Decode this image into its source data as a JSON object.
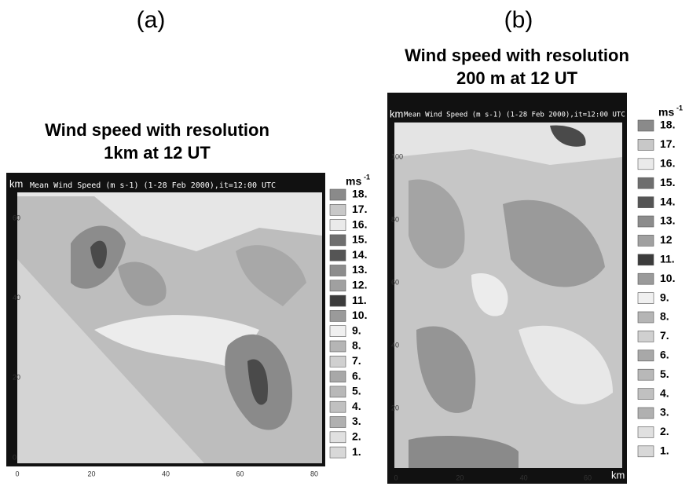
{
  "panels": [
    {
      "label": "(a)",
      "title": "Wind speed with resolution",
      "subtitle": "1km at 12 UT",
      "map_header": "Mean Wind Speed (m s-1) (1-28 Feb 2000),it=12:00 UTC",
      "axis_unit": "km",
      "yticks": [
        "60",
        "40",
        "20",
        "0"
      ],
      "xticks": [
        "0",
        "20",
        "40",
        "60",
        "80"
      ],
      "legend_unit": "ms",
      "legend_unit_sup": "-1",
      "legend": [
        {
          "label": "18.",
          "color": "#8a8a8a"
        },
        {
          "label": "17.",
          "color": "#c8c8c8"
        },
        {
          "label": "16.",
          "color": "#eaeaea"
        },
        {
          "label": "15.",
          "color": "#6e6e6e"
        },
        {
          "label": "14.",
          "color": "#555555"
        },
        {
          "label": "13.",
          "color": "#8c8c8c"
        },
        {
          "label": "12.",
          "color": "#a0a0a0"
        },
        {
          "label": "11.",
          "color": "#3c3c3c"
        },
        {
          "label": "10.",
          "color": "#9a9a9a"
        },
        {
          "label": "9.",
          "color": "#f0f0f0"
        },
        {
          "label": "8.",
          "color": "#b5b5b5"
        },
        {
          "label": "7.",
          "color": "#d0d0d0"
        },
        {
          "label": "6.",
          "color": "#a8a8a8"
        },
        {
          "label": "5.",
          "color": "#b8b8b8"
        },
        {
          "label": "4.",
          "color": "#c0c0c0"
        },
        {
          "label": "3.",
          "color": "#b0b0b0"
        },
        {
          "label": "2.",
          "color": "#e0e0e0"
        },
        {
          "label": "1.",
          "color": "#d8d8d8"
        }
      ]
    },
    {
      "label": "(b)",
      "title": "Wind speed with resolution",
      "subtitle": "200 m at 12 UT",
      "map_header": "Mean Wind Speed (m s-1) (1-28 Feb 2000),it=12:00 UTC",
      "axis_unit": "km",
      "yticks": [
        "100",
        "80",
        "60",
        "40",
        "20"
      ],
      "xticks": [
        "0",
        "20",
        "40",
        "60"
      ],
      "legend_unit": "ms",
      "legend_unit_sup": "-1",
      "legend": [
        {
          "label": "18.",
          "color": "#8a8a8a"
        },
        {
          "label": "17.",
          "color": "#c8c8c8"
        },
        {
          "label": "16.",
          "color": "#eaeaea"
        },
        {
          "label": "15.",
          "color": "#6e6e6e"
        },
        {
          "label": "14.",
          "color": "#555555"
        },
        {
          "label": "13.",
          "color": "#8c8c8c"
        },
        {
          "label": "12",
          "color": "#a0a0a0"
        },
        {
          "label": "11.",
          "color": "#3c3c3c"
        },
        {
          "label": "10.",
          "color": "#9a9a9a"
        },
        {
          "label": "9.",
          "color": "#f0f0f0"
        },
        {
          "label": "8.",
          "color": "#b5b5b5"
        },
        {
          "label": "7.",
          "color": "#d0d0d0"
        },
        {
          "label": "6.",
          "color": "#a8a8a8"
        },
        {
          "label": "5.",
          "color": "#b8b8b8"
        },
        {
          "label": "4.",
          "color": "#c0c0c0"
        },
        {
          "label": "3.",
          "color": "#b0b0b0"
        },
        {
          "label": "2.",
          "color": "#e0e0e0"
        },
        {
          "label": "1.",
          "color": "#d8d8d8"
        }
      ]
    }
  ]
}
